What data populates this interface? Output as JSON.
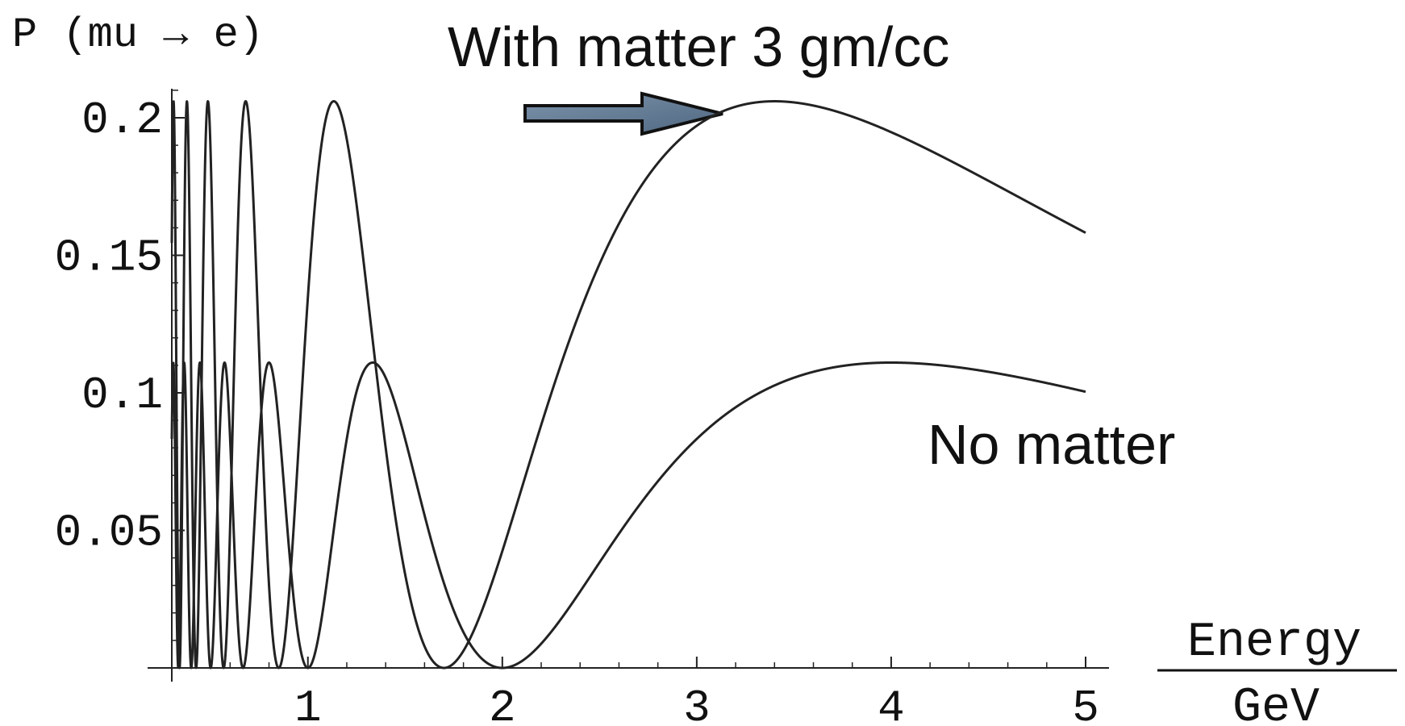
{
  "chart_data": {
    "type": "line",
    "ylabel": "P (mu → e)",
    "xlabel_numerator": "Energy",
    "xlabel_denominator": "GeV",
    "xlim": [
      0.3,
      5.1
    ],
    "ylim": [
      0,
      0.21
    ],
    "x_ticks": [
      1,
      2,
      3,
      4,
      5
    ],
    "x_tick_labels": [
      "1",
      "2",
      "3",
      "4",
      "5"
    ],
    "y_ticks": [
      0.05,
      0.1,
      0.15,
      0.2
    ],
    "y_tick_labels": [
      "0.05",
      "0.1",
      "0.15",
      "0.2"
    ],
    "grid": false,
    "annotations": [
      {
        "text": "With matter 3 gm/cc",
        "target": "matter",
        "arrow": true,
        "arrow_color": "#5f7791"
      },
      {
        "text": "No matter",
        "target": "vacuum"
      }
    ],
    "series": [
      {
        "key": "matter",
        "color": "#222222",
        "amplitude": 0.206,
        "null_energy": 1.7
      },
      {
        "key": "vacuum",
        "color": "#222222",
        "amplitude": 0.111,
        "null_energy": 2.0
      }
    ],
    "x_range_plotted": [
      0.3,
      5.0
    ]
  }
}
